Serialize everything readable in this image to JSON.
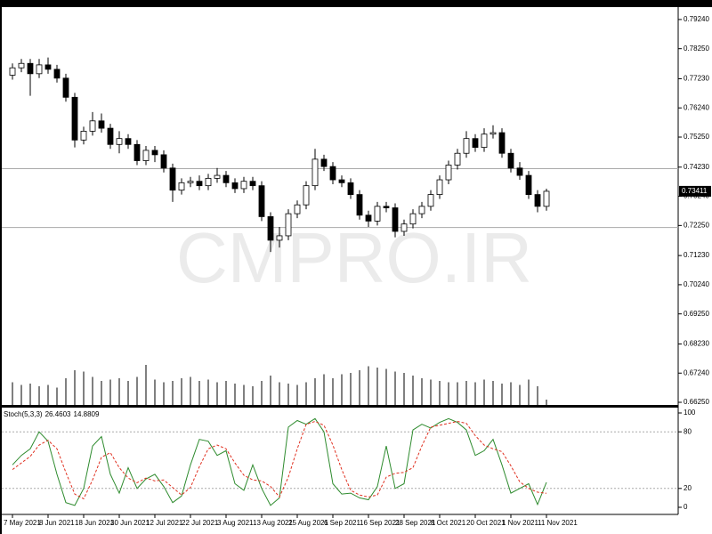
{
  "chart_data": [
    {
      "type": "candlestick",
      "watermark": "CMPRO.IR",
      "categories": [
        "7 May 2021",
        null,
        null,
        null,
        "8 Jun 2021",
        null,
        null,
        null,
        "18 Jun 2021",
        null,
        null,
        null,
        "30 Jun 2021",
        null,
        null,
        null,
        "12 Jul 2021",
        null,
        null,
        null,
        "22 Jul 2021",
        null,
        null,
        null,
        "3 Aug 2021",
        null,
        null,
        null,
        "13 Aug 2021",
        null,
        null,
        null,
        "25 Aug 2021",
        null,
        null,
        null,
        "6 Sep 2021",
        null,
        null,
        null,
        "16 Sep 2021",
        null,
        null,
        null,
        "28 Sep 2021",
        null,
        null,
        null,
        "8 Oct 2021",
        null,
        null,
        null,
        "20 Oct 2021",
        null,
        null,
        null,
        "1 Nov 2021",
        null,
        null,
        null,
        "11 Nov 2021"
      ],
      "open": [
        0.7735,
        0.776,
        0.7775,
        0.774,
        0.777,
        0.7755,
        0.7725,
        0.766,
        0.7515,
        0.7545,
        0.758,
        0.7555,
        0.75,
        0.752,
        0.75,
        0.7445,
        0.748,
        0.7465,
        0.742,
        0.7345,
        0.737,
        0.7375,
        0.736,
        0.7385,
        0.7395,
        0.737,
        0.735,
        0.7375,
        0.736,
        0.7255,
        0.7175,
        0.719,
        0.7265,
        0.7295,
        0.736,
        0.745,
        0.7425,
        0.738,
        0.737,
        0.733,
        0.726,
        0.724,
        0.729,
        0.7285,
        0.7205,
        0.723,
        0.7265,
        0.729,
        0.733,
        0.738,
        0.743,
        0.747,
        0.752,
        0.749,
        0.7535,
        0.754,
        0.747,
        0.742,
        0.7395,
        0.733,
        0.729
      ],
      "high": [
        0.7775,
        0.779,
        0.779,
        0.779,
        0.7795,
        0.777,
        0.774,
        0.7675,
        0.756,
        0.761,
        0.7605,
        0.757,
        0.7545,
        0.7535,
        0.7515,
        0.7495,
        0.7495,
        0.748,
        0.7435,
        0.7385,
        0.739,
        0.7395,
        0.74,
        0.742,
        0.741,
        0.7385,
        0.739,
        0.739,
        0.7375,
        0.727,
        0.722,
        0.728,
        0.731,
        0.7375,
        0.7485,
        0.7465,
        0.744,
        0.7395,
        0.7385,
        0.7345,
        0.7275,
        0.7305,
        0.7305,
        0.73,
        0.7245,
        0.728,
        0.7305,
        0.7345,
        0.7395,
        0.7445,
        0.7485,
        0.7545,
        0.7535,
        0.7555,
        0.7565,
        0.7555,
        0.7485,
        0.744,
        0.741,
        0.7345,
        0.735
      ],
      "low": [
        0.772,
        0.7745,
        0.7665,
        0.7725,
        0.774,
        0.771,
        0.7645,
        0.749,
        0.75,
        0.753,
        0.754,
        0.7485,
        0.747,
        0.7485,
        0.743,
        0.743,
        0.744,
        0.7405,
        0.7305,
        0.733,
        0.7355,
        0.7345,
        0.7345,
        0.737,
        0.7355,
        0.7335,
        0.7335,
        0.7345,
        0.724,
        0.7135,
        0.715,
        0.7175,
        0.725,
        0.728,
        0.7345,
        0.741,
        0.7365,
        0.7355,
        0.7315,
        0.7245,
        0.722,
        0.7225,
        0.727,
        0.7185,
        0.719,
        0.7215,
        0.725,
        0.7275,
        0.7315,
        0.7365,
        0.7415,
        0.7455,
        0.7475,
        0.7475,
        0.752,
        0.7455,
        0.7405,
        0.738,
        0.7315,
        0.727,
        0.7275
      ],
      "close": [
        0.776,
        0.7775,
        0.774,
        0.777,
        0.7755,
        0.7725,
        0.766,
        0.7515,
        0.7545,
        0.758,
        0.7555,
        0.75,
        0.752,
        0.75,
        0.7445,
        0.748,
        0.7465,
        0.742,
        0.7345,
        0.737,
        0.7375,
        0.736,
        0.7385,
        0.7395,
        0.737,
        0.735,
        0.7375,
        0.736,
        0.7255,
        0.7175,
        0.719,
        0.7265,
        0.7295,
        0.736,
        0.745,
        0.7425,
        0.738,
        0.737,
        0.733,
        0.726,
        0.724,
        0.729,
        0.7285,
        0.7205,
        0.723,
        0.7265,
        0.729,
        0.733,
        0.738,
        0.743,
        0.747,
        0.752,
        0.749,
        0.7535,
        0.754,
        0.747,
        0.742,
        0.7395,
        0.733,
        0.729,
        0.73411
      ],
      "volume": [
        34,
        30,
        32,
        28,
        30,
        26,
        40,
        52,
        50,
        42,
        36,
        38,
        40,
        36,
        42,
        60,
        38,
        34,
        36,
        40,
        42,
        36,
        38,
        34,
        36,
        32,
        30,
        28,
        36,
        44,
        34,
        32,
        30,
        34,
        40,
        46,
        40,
        46,
        48,
        52,
        58,
        56,
        54,
        50,
        48,
        44,
        40,
        38,
        36,
        34,
        34,
        36,
        34,
        38,
        36,
        32,
        34,
        30,
        38,
        28,
        8
      ],
      "bull_color": "#ffffff",
      "bear_color": "#000000",
      "volume_color": "#555555",
      "hlines": [
        0.7418,
        0.7218
      ],
      "ylim": [
        0.6616,
        0.7966
      ],
      "yticks": [
        {
          "value": 0.7924,
          "label": "0.79240"
        },
        {
          "value": 0.7825,
          "label": "0.78250"
        },
        {
          "value": 0.7723,
          "label": "0.77230"
        },
        {
          "value": 0.7624,
          "label": "0.76240"
        },
        {
          "value": 0.7525,
          "label": "0.75250"
        },
        {
          "value": 0.7423,
          "label": "0.74230"
        },
        {
          "value": 0.7324,
          "label": "0.73240"
        },
        {
          "value": 0.7225,
          "label": "0.72250"
        },
        {
          "value": 0.7123,
          "label": "0.71230"
        },
        {
          "value": 0.7024,
          "label": "0.70240"
        },
        {
          "value": 0.6925,
          "label": "0.69250"
        },
        {
          "value": 0.6823,
          "label": "0.68230"
        },
        {
          "value": 0.6724,
          "label": "0.67240"
        },
        {
          "value": 0.6625,
          "label": "0.66250"
        }
      ]
    },
    {
      "type": "line",
      "title": "Stoch(5,3,3)",
      "series": [
        {
          "color": "#2e8b2e",
          "dashed": false,
          "values": [
            45,
            55,
            62,
            80,
            70,
            35,
            5,
            2,
            20,
            65,
            75,
            35,
            15,
            42,
            20,
            30,
            35,
            22,
            5,
            12,
            45,
            72,
            70,
            55,
            60,
            25,
            18,
            45,
            20,
            2,
            10,
            85,
            92,
            88,
            94,
            80,
            25,
            14,
            15,
            10,
            8,
            22,
            65,
            20,
            25,
            82,
            88,
            84,
            90,
            94,
            90,
            82,
            55,
            60,
            72,
            45,
            15,
            20,
            25,
            3,
            26.4603
          ]
        },
        {
          "color": "#e03020",
          "dashed": true,
          "values": [
            40,
            47,
            54,
            66,
            71,
            62,
            37,
            14,
            9,
            29,
            53,
            58,
            42,
            31,
            26,
            31,
            28,
            29,
            21,
            13,
            21,
            43,
            62,
            66,
            62,
            47,
            34,
            29,
            28,
            22,
            11,
            32,
            62,
            88,
            91,
            87,
            66,
            40,
            18,
            13,
            11,
            13,
            32,
            36,
            37,
            42,
            65,
            85,
            87,
            89,
            91,
            89,
            76,
            66,
            62,
            59,
            44,
            27,
            20,
            16,
            14.8809
          ]
        }
      ],
      "levels": [
        80,
        20
      ],
      "ylim": [
        0,
        100
      ],
      "yticks": [
        100,
        80,
        20,
        0
      ]
    }
  ]
}
